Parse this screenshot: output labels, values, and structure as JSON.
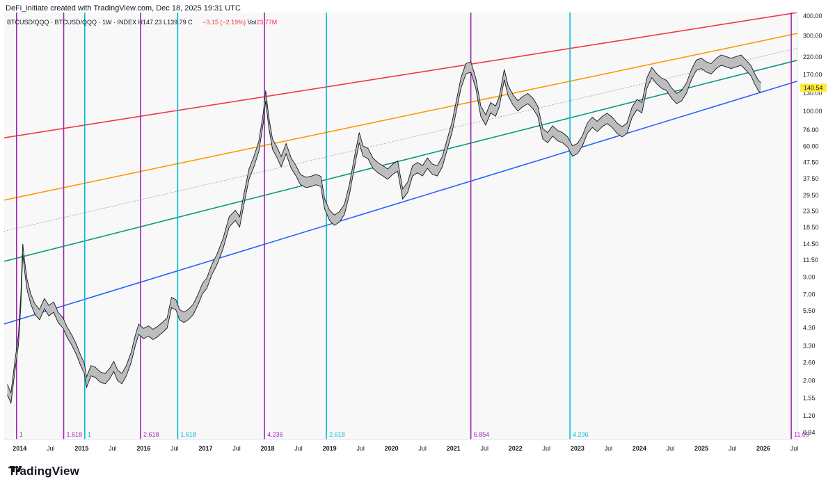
{
  "header": {
    "attribution": "DeFi_initiate created with TradingView.com, Dec 18, 2025 19:31 UTC"
  },
  "legend": {
    "symbol": "BTCUSD/QQQ · BTCUSD/QQQ · 1W · INDEX",
    "ohlc": "H147.23  L139.79  C",
    "change": "−3.15 (−2.19%)",
    "vol_label": "Vol",
    "vol_value": "23.77M"
  },
  "footer": {
    "brand": "TradingView"
  },
  "chart_data": {
    "type": "line",
    "title": "BTCUSD/QQQ",
    "y_scale": "log",
    "ylim": [
      0.85,
      420
    ],
    "xlim": [
      2013.75,
      2026.55
    ],
    "y_ticks": [
      {
        "label": "400.00",
        "value": 400
      },
      {
        "label": "300.00",
        "value": 300
      },
      {
        "label": "220.00",
        "value": 220
      },
      {
        "label": "170.00",
        "value": 170
      },
      {
        "label": "130.00",
        "value": 130
      },
      {
        "label": "100.00",
        "value": 100
      },
      {
        "label": "76.00",
        "value": 76
      },
      {
        "label": "60.00",
        "value": 60
      },
      {
        "label": "47.50",
        "value": 47.5
      },
      {
        "label": "37.50",
        "value": 37.5
      },
      {
        "label": "29.50",
        "value": 29.5
      },
      {
        "label": "23.50",
        "value": 23.5
      },
      {
        "label": "18.50",
        "value": 18.5
      },
      {
        "label": "14.50",
        "value": 14.5
      },
      {
        "label": "11.50",
        "value": 11.5
      },
      {
        "label": "9.00",
        "value": 9
      },
      {
        "label": "7.00",
        "value": 7
      },
      {
        "label": "5.50",
        "value": 5.5
      },
      {
        "label": "4.30",
        "value": 4.3
      },
      {
        "label": "3.30",
        "value": 3.3
      },
      {
        "label": "2.60",
        "value": 2.6
      },
      {
        "label": "2.00",
        "value": 2
      },
      {
        "label": "1.55",
        "value": 1.55
      },
      {
        "label": "1.20",
        "value": 1.2
      },
      {
        "label": "0.94",
        "value": 0.94
      }
    ],
    "x_ticks": [
      {
        "label": "2014",
        "value": 2014.0,
        "bold": true
      },
      {
        "label": "Jul",
        "value": 2014.5
      },
      {
        "label": "2015",
        "value": 2015.0,
        "bold": true
      },
      {
        "label": "Jul",
        "value": 2015.5
      },
      {
        "label": "2016",
        "value": 2016.0,
        "bold": true
      },
      {
        "label": "Jul",
        "value": 2016.5
      },
      {
        "label": "2017",
        "value": 2017.0,
        "bold": true
      },
      {
        "label": "Jul",
        "value": 2017.5
      },
      {
        "label": "2018",
        "value": 2018.0,
        "bold": true
      },
      {
        "label": "Jul",
        "value": 2018.5
      },
      {
        "label": "2019",
        "value": 2019.0,
        "bold": true
      },
      {
        "label": "Jul",
        "value": 2019.5
      },
      {
        "label": "2020",
        "value": 2020.0,
        "bold": true
      },
      {
        "label": "Jul",
        "value": 2020.5
      },
      {
        "label": "2021",
        "value": 2021.0,
        "bold": true
      },
      {
        "label": "Jul",
        "value": 2021.5
      },
      {
        "label": "2022",
        "value": 2022.0,
        "bold": true
      },
      {
        "label": "Jul",
        "value": 2022.5
      },
      {
        "label": "2023",
        "value": 2023.0,
        "bold": true
      },
      {
        "label": "Jul",
        "value": 2023.5
      },
      {
        "label": "2024",
        "value": 2024.0,
        "bold": true
      },
      {
        "label": "Jul",
        "value": 2024.5
      },
      {
        "label": "2025",
        "value": 2025.0,
        "bold": true
      },
      {
        "label": "Jul",
        "value": 2025.5
      },
      {
        "label": "2026",
        "value": 2026.0,
        "bold": true
      },
      {
        "label": "Jul",
        "value": 2026.5
      }
    ],
    "current_price": {
      "label": "140.54",
      "value": 140.54,
      "color": "#ffeb3b"
    },
    "series": [
      {
        "color": "#131722",
        "fill": "#bdbdbd",
        "points": [
          [
            2013.8,
            1.75
          ],
          [
            2013.86,
            1.55
          ],
          [
            2013.92,
            2.4
          ],
          [
            2013.98,
            3.6
          ],
          [
            2014.02,
            6.5
          ],
          [
            2014.05,
            13.5
          ],
          [
            2014.08,
            10.5
          ],
          [
            2014.12,
            8.0
          ],
          [
            2014.18,
            6.5
          ],
          [
            2014.25,
            5.6
          ],
          [
            2014.32,
            5.2
          ],
          [
            2014.4,
            6.1
          ],
          [
            2014.47,
            5.5
          ],
          [
            2014.55,
            5.8
          ],
          [
            2014.62,
            5.0
          ],
          [
            2014.7,
            4.6
          ],
          [
            2014.77,
            4.0
          ],
          [
            2014.84,
            3.6
          ],
          [
            2014.92,
            3.1
          ],
          [
            2014.98,
            2.7
          ],
          [
            2015.04,
            2.4
          ],
          [
            2015.08,
            1.95
          ],
          [
            2015.15,
            2.3
          ],
          [
            2015.22,
            2.25
          ],
          [
            2015.3,
            2.1
          ],
          [
            2015.38,
            2.05
          ],
          [
            2015.45,
            2.2
          ],
          [
            2015.52,
            2.45
          ],
          [
            2015.58,
            2.15
          ],
          [
            2015.65,
            2.05
          ],
          [
            2015.72,
            2.3
          ],
          [
            2015.8,
            2.8
          ],
          [
            2015.86,
            3.5
          ],
          [
            2015.92,
            4.2
          ],
          [
            2016.0,
            3.95
          ],
          [
            2016.08,
            4.1
          ],
          [
            2016.15,
            3.9
          ],
          [
            2016.22,
            4.05
          ],
          [
            2016.3,
            4.3
          ],
          [
            2016.38,
            4.6
          ],
          [
            2016.45,
            6.2
          ],
          [
            2016.52,
            6.0
          ],
          [
            2016.58,
            5.2
          ],
          [
            2016.65,
            5.0
          ],
          [
            2016.72,
            5.2
          ],
          [
            2016.8,
            5.6
          ],
          [
            2016.88,
            6.5
          ],
          [
            2016.95,
            7.6
          ],
          [
            2017.02,
            8.2
          ],
          [
            2017.1,
            10.0
          ],
          [
            2017.18,
            11.5
          ],
          [
            2017.28,
            14.5
          ],
          [
            2017.38,
            20.0
          ],
          [
            2017.48,
            22.0
          ],
          [
            2017.55,
            20.0
          ],
          [
            2017.62,
            28.0
          ],
          [
            2017.7,
            40.0
          ],
          [
            2017.78,
            48.0
          ],
          [
            2017.86,
            60.0
          ],
          [
            2017.93,
            90.0
          ],
          [
            2017.97,
            125.0
          ],
          [
            2018.02,
            85.0
          ],
          [
            2018.08,
            62.0
          ],
          [
            2018.15,
            55.0
          ],
          [
            2018.22,
            48.0
          ],
          [
            2018.3,
            58.0
          ],
          [
            2018.38,
            47.0
          ],
          [
            2018.46,
            42.0
          ],
          [
            2018.53,
            37.0
          ],
          [
            2018.62,
            35.5
          ],
          [
            2018.7,
            36.0
          ],
          [
            2018.78,
            37.0
          ],
          [
            2018.86,
            36.0
          ],
          [
            2018.92,
            26.0
          ],
          [
            2019.0,
            22.0
          ],
          [
            2019.08,
            20.5
          ],
          [
            2019.16,
            21.5
          ],
          [
            2019.24,
            24.0
          ],
          [
            2019.32,
            32.0
          ],
          [
            2019.42,
            52.0
          ],
          [
            2019.48,
            68.0
          ],
          [
            2019.54,
            56.0
          ],
          [
            2019.62,
            54.0
          ],
          [
            2019.7,
            47.0
          ],
          [
            2019.78,
            44.0
          ],
          [
            2019.86,
            42.0
          ],
          [
            2019.94,
            40.0
          ],
          [
            2020.02,
            43.0
          ],
          [
            2020.1,
            45.0
          ],
          [
            2020.18,
            30.0
          ],
          [
            2020.26,
            33.0
          ],
          [
            2020.34,
            42.0
          ],
          [
            2020.42,
            44.0
          ],
          [
            2020.5,
            42.0
          ],
          [
            2020.58,
            47.0
          ],
          [
            2020.66,
            43.0
          ],
          [
            2020.74,
            42.0
          ],
          [
            2020.82,
            48.0
          ],
          [
            2020.9,
            62.0
          ],
          [
            2020.98,
            80.0
          ],
          [
            2021.05,
            110.0
          ],
          [
            2021.12,
            150.0
          ],
          [
            2021.2,
            185.0
          ],
          [
            2021.28,
            190.0
          ],
          [
            2021.36,
            150.0
          ],
          [
            2021.44,
            100.0
          ],
          [
            2021.52,
            88.0
          ],
          [
            2021.6,
            105.0
          ],
          [
            2021.68,
            100.0
          ],
          [
            2021.74,
            115.0
          ],
          [
            2021.82,
            170.0
          ],
          [
            2021.88,
            135.0
          ],
          [
            2021.96,
            118.0
          ],
          [
            2022.04,
            108.0
          ],
          [
            2022.12,
            115.0
          ],
          [
            2022.2,
            120.0
          ],
          [
            2022.28,
            112.0
          ],
          [
            2022.36,
            100.0
          ],
          [
            2022.44,
            72.0
          ],
          [
            2022.52,
            68.0
          ],
          [
            2022.6,
            75.0
          ],
          [
            2022.68,
            70.0
          ],
          [
            2022.76,
            68.0
          ],
          [
            2022.84,
            64.0
          ],
          [
            2022.92,
            56.0
          ],
          [
            2023.0,
            58.0
          ],
          [
            2023.08,
            65.0
          ],
          [
            2023.16,
            78.0
          ],
          [
            2023.24,
            85.0
          ],
          [
            2023.32,
            80.0
          ],
          [
            2023.4,
            86.0
          ],
          [
            2023.48,
            90.0
          ],
          [
            2023.56,
            85.0
          ],
          [
            2023.64,
            78.0
          ],
          [
            2023.72,
            74.0
          ],
          [
            2023.8,
            78.0
          ],
          [
            2023.88,
            98.0
          ],
          [
            2023.96,
            110.0
          ],
          [
            2024.04,
            105.0
          ],
          [
            2024.12,
            150.0
          ],
          [
            2024.2,
            175.0
          ],
          [
            2024.28,
            160.0
          ],
          [
            2024.36,
            150.0
          ],
          [
            2024.44,
            145.0
          ],
          [
            2024.52,
            130.0
          ],
          [
            2024.6,
            120.0
          ],
          [
            2024.68,
            125.0
          ],
          [
            2024.76,
            140.0
          ],
          [
            2024.84,
            170.0
          ],
          [
            2024.92,
            195.0
          ],
          [
            2025.0,
            200.0
          ],
          [
            2025.08,
            190.0
          ],
          [
            2025.16,
            185.0
          ],
          [
            2025.24,
            200.0
          ],
          [
            2025.32,
            210.0
          ],
          [
            2025.4,
            205.0
          ],
          [
            2025.48,
            200.0
          ],
          [
            2025.56,
            205.0
          ],
          [
            2025.64,
            210.0
          ],
          [
            2025.72,
            195.0
          ],
          [
            2025.8,
            180.0
          ],
          [
            2025.86,
            160.0
          ],
          [
            2025.92,
            145.0
          ],
          [
            2025.96,
            140.54
          ]
        ]
      }
    ],
    "channel_lines": [
      {
        "color": "#f23645",
        "x1": 2013.75,
        "y1": 68,
        "x2": 2026.55,
        "y2": 420
      },
      {
        "color": "#ff9800",
        "x1": 2013.75,
        "y1": 27.5,
        "x2": 2026.55,
        "y2": 310
      },
      {
        "color": "#089981",
        "x1": 2013.75,
        "y1": 11.3,
        "x2": 2026.55,
        "y2": 210
      },
      {
        "color": "#2962ff",
        "x1": 2013.75,
        "y1": 4.55,
        "x2": 2026.55,
        "y2": 155
      },
      {
        "color": "#9598a1",
        "x1": 2013.75,
        "y1": 17.5,
        "x2": 2026.55,
        "y2": 250,
        "dashed": true
      }
    ],
    "vertical_lines": [
      {
        "x": 2013.95,
        "label": "1",
        "color": "#9c27b0"
      },
      {
        "x": 2014.71,
        "label": "1.618",
        "color": "#9c27b0"
      },
      {
        "x": 2015.05,
        "label": "1",
        "color": "#00bcd4"
      },
      {
        "x": 2015.95,
        "label": "2.618",
        "color": "#9c27b0"
      },
      {
        "x": 2016.55,
        "label": "1.618",
        "color": "#00bcd4"
      },
      {
        "x": 2017.95,
        "label": "4.236",
        "color": "#9c27b0"
      },
      {
        "x": 2018.95,
        "label": "2.618",
        "color": "#00bcd4"
      },
      {
        "x": 2021.28,
        "label": "6.854",
        "color": "#9c27b0"
      },
      {
        "x": 2022.88,
        "label": "4.236",
        "color": "#00bcd4"
      },
      {
        "x": 2026.45,
        "label": "11.09",
        "color": "#9c27b0"
      }
    ]
  }
}
